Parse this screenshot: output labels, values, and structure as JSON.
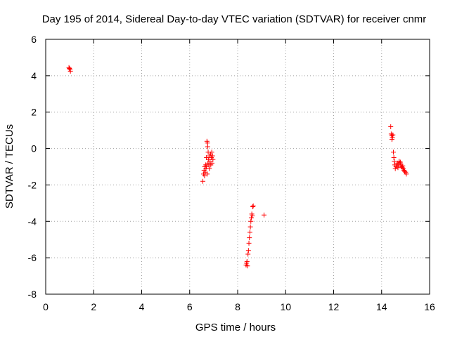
{
  "chart_data": {
    "type": "scatter",
    "title": "Day 195 of 2014, Sidereal Day-to-day VTEC variation (SDTVAR) for receiver cnmr",
    "xlabel": "GPS time / hours",
    "ylabel": "SDTVAR / TECUs",
    "xlim": [
      0,
      16
    ],
    "ylim": [
      -8,
      6
    ],
    "xticks": [
      0,
      2,
      4,
      6,
      8,
      10,
      12,
      14,
      16
    ],
    "yticks": [
      -8,
      -6,
      -4,
      -2,
      0,
      2,
      4,
      6
    ],
    "grid": true,
    "marker": "+",
    "color": "#ff0000",
    "series": [
      {
        "name": "SDTVAR",
        "points": [
          [
            0.97,
            4.45
          ],
          [
            0.99,
            4.4
          ],
          [
            1.01,
            4.35
          ],
          [
            1.03,
            4.25
          ],
          [
            6.55,
            -1.8
          ],
          [
            6.58,
            -1.4
          ],
          [
            6.6,
            -1.2
          ],
          [
            6.62,
            -1.5
          ],
          [
            6.63,
            -1.0
          ],
          [
            6.65,
            -1.3
          ],
          [
            6.67,
            -0.9
          ],
          [
            6.68,
            -1.1
          ],
          [
            6.7,
            -0.5
          ],
          [
            6.72,
            0.4
          ],
          [
            6.74,
            0.3
          ],
          [
            6.75,
            0.1
          ],
          [
            6.77,
            -0.2
          ],
          [
            6.78,
            -0.6
          ],
          [
            6.8,
            -0.9
          ],
          [
            6.82,
            -1.1
          ],
          [
            6.83,
            -0.4
          ],
          [
            6.85,
            -0.7
          ],
          [
            6.87,
            -0.3
          ],
          [
            6.88,
            -0.9
          ],
          [
            6.9,
            -0.5
          ],
          [
            6.92,
            -0.2
          ],
          [
            6.93,
            -0.8
          ],
          [
            6.95,
            -0.4
          ],
          [
            6.97,
            -0.6
          ],
          [
            6.7,
            -1.0
          ],
          [
            6.73,
            -1.4
          ],
          [
            6.76,
            -0.8
          ],
          [
            8.35,
            -6.4
          ],
          [
            8.37,
            -6.3
          ],
          [
            8.39,
            -6.2
          ],
          [
            8.41,
            -6.45
          ],
          [
            8.43,
            -5.8
          ],
          [
            8.45,
            -5.6
          ],
          [
            8.47,
            -5.2
          ],
          [
            8.49,
            -4.9
          ],
          [
            8.51,
            -4.6
          ],
          [
            8.53,
            -4.3
          ],
          [
            8.55,
            -4.0
          ],
          [
            8.57,
            -3.8
          ],
          [
            8.59,
            -3.6
          ],
          [
            8.61,
            -3.7
          ],
          [
            8.63,
            -3.2
          ],
          [
            8.65,
            -3.15
          ],
          [
            9.1,
            -3.65
          ],
          [
            14.38,
            1.2
          ],
          [
            14.4,
            0.8
          ],
          [
            14.42,
            0.7
          ],
          [
            14.43,
            0.5
          ],
          [
            14.45,
            0.6
          ],
          [
            14.47,
            0.75
          ],
          [
            14.49,
            -0.2
          ],
          [
            14.51,
            -0.5
          ],
          [
            14.53,
            -0.7
          ],
          [
            14.55,
            -0.9
          ],
          [
            14.57,
            -1.1
          ],
          [
            14.6,
            -1.0
          ],
          [
            14.63,
            -0.9
          ],
          [
            14.66,
            -0.8
          ],
          [
            14.7,
            -0.9
          ],
          [
            14.73,
            -0.7
          ],
          [
            14.76,
            -0.8
          ],
          [
            14.8,
            -0.9
          ],
          [
            14.83,
            -1.0
          ],
          [
            14.86,
            -1.05
          ],
          [
            14.9,
            -1.1
          ],
          [
            14.93,
            -1.2
          ],
          [
            14.96,
            -1.25
          ],
          [
            15.0,
            -1.3
          ],
          [
            15.03,
            -1.4
          ],
          [
            14.68,
            -1.05
          ],
          [
            14.78,
            -0.75
          ],
          [
            14.88,
            -0.95
          ]
        ]
      }
    ]
  }
}
